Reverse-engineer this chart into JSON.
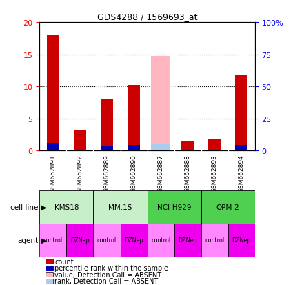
{
  "title": "GDS4288 / 1569693_at",
  "samples": [
    "GSM662891",
    "GSM662892",
    "GSM662889",
    "GSM662890",
    "GSM662887",
    "GSM662888",
    "GSM662893",
    "GSM662894"
  ],
  "count_values": [
    18.0,
    3.2,
    8.1,
    10.2,
    null,
    1.4,
    1.8,
    11.8
  ],
  "rank_values": [
    6.2,
    1.0,
    4.1,
    4.5,
    null,
    0.8,
    1.0,
    4.5
  ],
  "absent_value": [
    null,
    null,
    null,
    null,
    14.8,
    null,
    null,
    null
  ],
  "absent_rank": [
    null,
    null,
    null,
    null,
    5.2,
    null,
    null,
    null
  ],
  "cell_lines": [
    {
      "label": "KMS18",
      "span": [
        0,
        2
      ],
      "color": "#C8F0C8"
    },
    {
      "label": "MM.1S",
      "span": [
        2,
        4
      ],
      "color": "#C8F0C8"
    },
    {
      "label": "NCI-H929",
      "span": [
        4,
        6
      ],
      "color": "#50D050"
    },
    {
      "label": "OPM-2",
      "span": [
        6,
        8
      ],
      "color": "#50D050"
    }
  ],
  "agents": [
    "control",
    "DZNep",
    "control",
    "DZNep",
    "control",
    "DZNep",
    "control",
    "DZNep"
  ],
  "agent_color_control": "#FF88FF",
  "agent_color_dzNep": "#EE00EE",
  "ylim_left": [
    0,
    20
  ],
  "ylim_right": [
    0,
    100
  ],
  "left_yticks": [
    0,
    5,
    10,
    15,
    20
  ],
  "right_yticks": [
    0,
    25,
    50,
    75,
    100
  ],
  "right_ytick_labels": [
    "0",
    "25",
    "50",
    "75",
    "100%"
  ],
  "color_count": "#CC0000",
  "color_rank": "#0000BB",
  "color_absent_value": "#FFB6C1",
  "color_absent_rank": "#AACCEE",
  "color_sample_bg": "#C8C8C8",
  "bar_width": 0.45,
  "legend_items": [
    {
      "color": "#CC0000",
      "label": "count"
    },
    {
      "color": "#0000BB",
      "label": "percentile rank within the sample"
    },
    {
      "color": "#FFB6C1",
      "label": "value, Detection Call = ABSENT"
    },
    {
      "color": "#AACCEE",
      "label": "rank, Detection Call = ABSENT"
    }
  ]
}
